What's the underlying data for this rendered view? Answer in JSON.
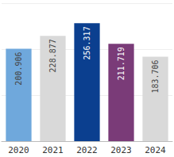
{
  "chart_data": {
    "type": "bar",
    "categories": [
      "2020",
      "2021",
      "2022",
      "2023",
      "2024"
    ],
    "values": [
      200.906,
      228.877,
      256.317,
      211.719,
      183.706
    ],
    "colors": [
      "#6fa8dc",
      "#d9d9d9",
      "#0b3f8f",
      "#7a3b78",
      "#d9d9d9"
    ],
    "ylim": [
      0,
      300
    ],
    "yticks": [
      0,
      100,
      200,
      300
    ],
    "grid": true,
    "data_labels": true,
    "tick_labels": "x"
  }
}
